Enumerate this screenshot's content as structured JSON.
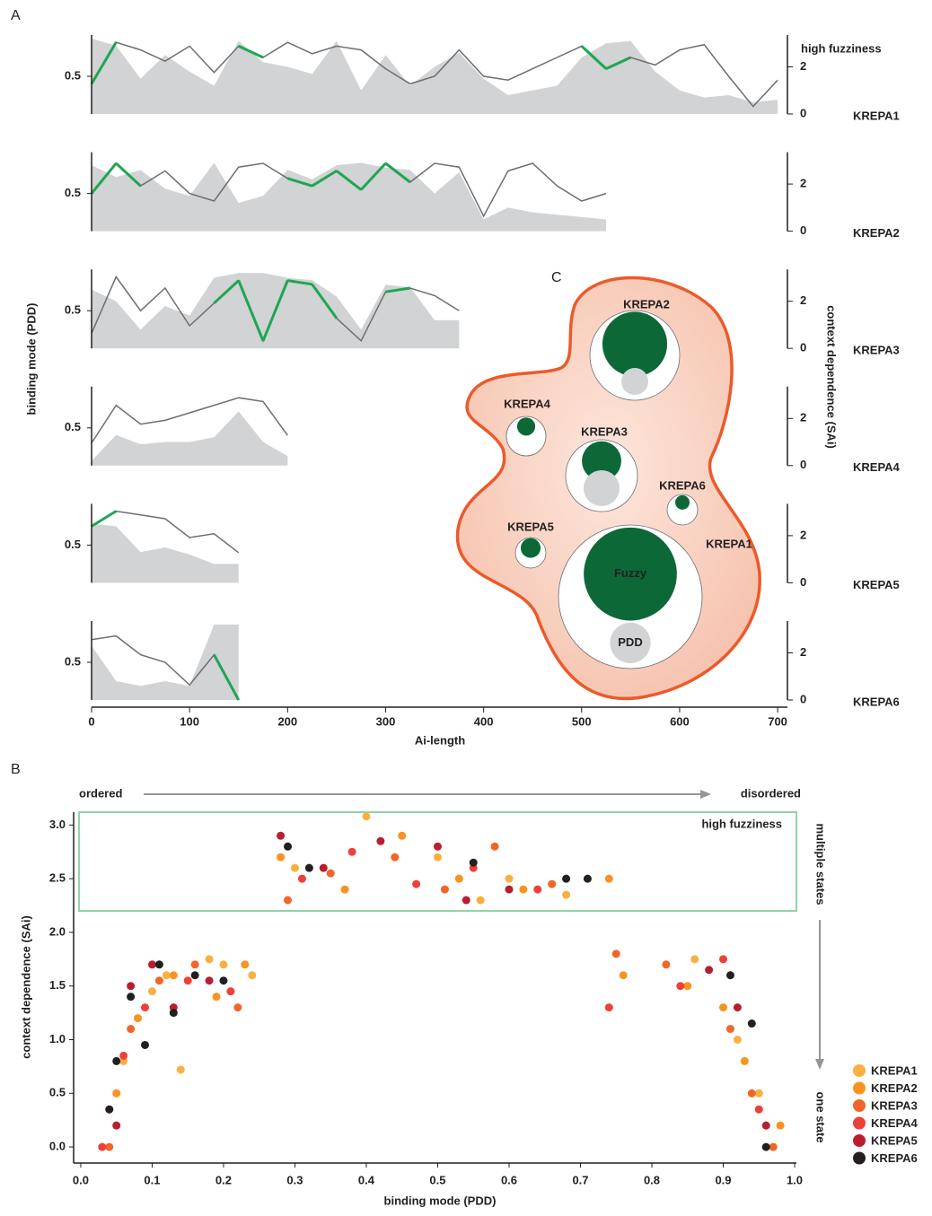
{
  "chart_data": [
    {
      "type": "track",
      "panel": "A",
      "xlabel": "Ai-length",
      "ylabel": "binding mode (PDD)",
      "y2label": "context dependence (SAi)",
      "annotation": "high fuzziness",
      "x": [
        0,
        25,
        50,
        75,
        100,
        125,
        150,
        175,
        200,
        225,
        250,
        275,
        300,
        325,
        350,
        375,
        400,
        425,
        450,
        475,
        500,
        525,
        550,
        575,
        600,
        625,
        650,
        675,
        700
      ],
      "xlim": [
        0,
        710
      ],
      "xticks": [
        0,
        100,
        200,
        300,
        400,
        500,
        600,
        700
      ],
      "ylim": [
        0,
        1
      ],
      "yticks": [
        0.5
      ],
      "y2lim": [
        0,
        3.2
      ],
      "y2ticks": [
        0,
        2
      ],
      "line_color": "#6d6e71",
      "area_color": "#d1d3d4",
      "highlight_color": "#1fa653",
      "tracks": [
        {
          "name": "KREPA1",
          "pdd": [
            0.4,
            0.95,
            0.85,
            0.7,
            0.9,
            0.55,
            0.9,
            0.75,
            0.95,
            0.8,
            0.9,
            0.85,
            0.6,
            0.4,
            0.5,
            0.85,
            0.5,
            0.45,
            0.6,
            0.75,
            0.9,
            0.6,
            0.75,
            0.65,
            0.85,
            0.92,
            0.5,
            0.1,
            0.45
          ],
          "sa": [
            3.2,
            2.9,
            1.5,
            2.5,
            1.8,
            1.2,
            3.1,
            2.2,
            2.0,
            1.7,
            3.1,
            1.0,
            2.5,
            1.2,
            2.0,
            2.6,
            1.5,
            0.8,
            1.0,
            1.2,
            2.4,
            3.0,
            3.1,
            1.8,
            1.0,
            0.7,
            0.8,
            0.5,
            0.6
          ]
        },
        {
          "name": "KREPA2",
          "pdd": [
            0.5,
            0.9,
            0.6,
            0.8,
            0.5,
            0.4,
            0.85,
            0.9,
            0.7,
            0.6,
            0.8,
            0.55,
            0.9,
            0.65,
            0.9,
            0.85,
            0.2,
            0.8,
            0.9,
            0.6,
            0.4,
            0.5,
            null,
            null,
            null,
            null,
            null,
            null,
            null
          ],
          "sa": [
            2.8,
            2.3,
            2.6,
            1.8,
            1.5,
            2.9,
            1.2,
            1.5,
            2.6,
            2.2,
            2.8,
            2.9,
            2.7,
            2.6,
            1.6,
            2.5,
            0.5,
            1.0,
            0.8,
            0.7,
            0.6,
            0.5,
            null,
            null,
            null,
            null,
            null,
            null,
            null
          ]
        },
        {
          "name": "KREPA3",
          "pdd": [
            0.2,
            0.95,
            0.5,
            0.8,
            0.3,
            0.6,
            0.9,
            0.1,
            0.9,
            0.85,
            0.4,
            0.1,
            0.75,
            0.8,
            0.7,
            0.5,
            null,
            null,
            null,
            null,
            null,
            null,
            null,
            null,
            null,
            null,
            null,
            null,
            null
          ],
          "sa": [
            2.5,
            2.0,
            0.8,
            1.8,
            1.4,
            3.0,
            3.2,
            3.2,
            3.0,
            2.9,
            2.2,
            0.8,
            2.7,
            2.6,
            1.2,
            1.2,
            null,
            null,
            null,
            null,
            null,
            null,
            null,
            null,
            null,
            null,
            null,
            null,
            null
          ]
        },
        {
          "name": "KREPA4",
          "pdd": [
            0.3,
            0.8,
            0.55,
            0.6,
            0.7,
            0.8,
            0.9,
            0.85,
            0.4,
            null,
            null,
            null,
            null,
            null,
            null,
            null,
            null,
            null,
            null,
            null,
            null,
            null,
            null,
            null,
            null,
            null,
            null,
            null,
            null
          ],
          "sa": [
            0.2,
            1.3,
            0.9,
            1.0,
            1.0,
            1.2,
            2.3,
            1.0,
            0.4,
            null,
            null,
            null,
            null,
            null,
            null,
            null,
            null,
            null,
            null,
            null,
            null,
            null,
            null,
            null,
            null,
            null,
            null,
            null,
            null
          ]
        },
        {
          "name": "KREPA5",
          "pdd": [
            0.75,
            0.95,
            0.9,
            0.85,
            0.6,
            0.65,
            0.4,
            null,
            null,
            null,
            null,
            null,
            null,
            null,
            null,
            null,
            null,
            null,
            null,
            null,
            null,
            null,
            null,
            null,
            null,
            null,
            null,
            null,
            null
          ],
          "sa": [
            2.5,
            2.4,
            1.3,
            1.5,
            1.2,
            0.8,
            0.8,
            null,
            null,
            null,
            null,
            null,
            null,
            null,
            null,
            null,
            null,
            null,
            null,
            null,
            null,
            null,
            null,
            null,
            null,
            null,
            null,
            null,
            null
          ]
        },
        {
          "name": "KREPA6",
          "pdd": [
            0.8,
            0.85,
            0.6,
            0.5,
            0.2,
            0.6,
            0.0,
            null,
            null,
            null,
            null,
            null,
            null,
            null,
            null,
            null,
            null,
            null,
            null,
            null,
            null,
            null,
            null,
            null,
            null,
            null,
            null,
            null,
            null
          ],
          "sa": [
            2.3,
            0.8,
            0.6,
            0.8,
            0.6,
            3.2,
            3.2,
            null,
            null,
            null,
            null,
            null,
            null,
            null,
            null,
            null,
            null,
            null,
            null,
            null,
            null,
            null,
            null,
            null,
            null,
            null,
            null,
            null,
            null
          ]
        }
      ]
    },
    {
      "type": "scatter",
      "panel": "B",
      "xlabel": "binding mode (PDD)",
      "ylabel": "context dependence (SAi)",
      "xlim": [
        -0.01,
        1.0
      ],
      "ylim": [
        -0.15,
        3.12
      ],
      "xticks": [
        {
          "value": 0,
          "label": "0.0"
        },
        0.1,
        0.2,
        0.3,
        0.4,
        0.5,
        0.6,
        0.7,
        0.8,
        0.9,
        {
          "value": 1,
          "label": "1.0"
        }
      ],
      "yticks": [
        {
          "value": 0,
          "label": "0.0"
        },
        0.5,
        {
          "value": 1,
          "label": "1.0"
        },
        1.5,
        {
          "value": 2,
          "label": "2.0"
        },
        2.5,
        {
          "value": 3,
          "label": "3.0"
        }
      ],
      "highlight": {
        "label": "high fuzziness",
        "xlim": [
          0,
          1
        ],
        "ylim": [
          2.2,
          3.12
        ]
      },
      "annotations": {
        "left": "ordered",
        "right": "disordered",
        "top": "multiple states",
        "bottom": "one state"
      },
      "series": [
        {
          "name": "KREPA1",
          "color": "#f9b040",
          "x": [
            0.04,
            0.06,
            0.1,
            0.14,
            0.2,
            0.24,
            0.12,
            0.18,
            0.3,
            0.4,
            0.5,
            0.6,
            0.68,
            0.86,
            0.92,
            0.95,
            0.97,
            0.56
          ],
          "values": [
            0.35,
            0.8,
            1.45,
            0.72,
            1.7,
            1.6,
            1.6,
            1.75,
            2.6,
            3.08,
            2.7,
            2.5,
            2.35,
            1.75,
            1.0,
            0.5,
            0.0,
            2.3
          ]
        },
        {
          "name": "KREPA2",
          "color": "#f7931e",
          "x": [
            0.05,
            0.08,
            0.13,
            0.19,
            0.23,
            0.28,
            0.37,
            0.45,
            0.53,
            0.62,
            0.74,
            0.76,
            0.85,
            0.9,
            0.93,
            0.98
          ],
          "values": [
            0.5,
            1.2,
            1.6,
            1.4,
            1.7,
            2.7,
            2.4,
            2.9,
            2.5,
            2.4,
            2.5,
            1.6,
            1.5,
            1.3,
            0.8,
            0.2
          ]
        },
        {
          "name": "KREPA3",
          "color": "#f26529",
          "x": [
            0.04,
            0.07,
            0.11,
            0.16,
            0.22,
            0.29,
            0.35,
            0.44,
            0.51,
            0.58,
            0.66,
            0.75,
            0.82,
            0.91,
            0.94,
            0.97
          ],
          "values": [
            0.0,
            1.1,
            1.55,
            1.7,
            1.3,
            2.3,
            2.55,
            2.7,
            2.4,
            2.8,
            2.45,
            1.8,
            1.7,
            1.1,
            0.5,
            0.0
          ]
        },
        {
          "name": "KREPA4",
          "color": "#ee4036",
          "x": [
            0.03,
            0.06,
            0.09,
            0.15,
            0.21,
            0.31,
            0.38,
            0.47,
            0.55,
            0.64,
            0.74,
            0.84,
            0.9,
            0.95
          ],
          "values": [
            0.0,
            0.85,
            1.3,
            1.55,
            1.45,
            2.5,
            2.75,
            2.45,
            2.6,
            2.4,
            1.3,
            1.5,
            1.75,
            0.35
          ]
        },
        {
          "name": "KREPA5",
          "color": "#b81f2e",
          "x": [
            0.05,
            0.07,
            0.1,
            0.13,
            0.18,
            0.28,
            0.34,
            0.42,
            0.5,
            0.54,
            0.6,
            0.88,
            0.92,
            0.96
          ],
          "values": [
            0.2,
            1.5,
            1.7,
            1.3,
            1.55,
            2.9,
            2.6,
            2.85,
            2.8,
            2.3,
            2.4,
            1.65,
            1.3,
            0.2
          ]
        },
        {
          "name": "KREPA6",
          "color": "#231f20",
          "x": [
            0.04,
            0.05,
            0.07,
            0.09,
            0.11,
            0.13,
            0.16,
            0.2,
            0.29,
            0.32,
            0.55,
            0.68,
            0.71,
            0.91,
            0.94,
            0.96
          ],
          "values": [
            0.35,
            0.8,
            1.4,
            0.95,
            1.7,
            1.25,
            1.6,
            1.55,
            2.8,
            2.6,
            2.65,
            2.5,
            2.5,
            1.6,
            1.15,
            0.0
          ]
        }
      ]
    },
    {
      "type": "bubble",
      "panel": "C",
      "categories": [
        "KREPA1",
        "KREPA2",
        "KREPA3",
        "KREPA4",
        "KREPA5",
        "KREPA6"
      ],
      "outline_color": "#ec5a2a",
      "series": [
        {
          "name": "Fuzzy",
          "color": "#0d6837",
          "values": [
            0.42,
            0.52,
            0.3,
            0.21,
            0.42,
            0.22
          ]
        },
        {
          "name": "PDD",
          "color": "#d1d3d4",
          "values": [
            0.08,
            0.09,
            0.25,
            null,
            null,
            null
          ]
        }
      ]
    }
  ]
}
